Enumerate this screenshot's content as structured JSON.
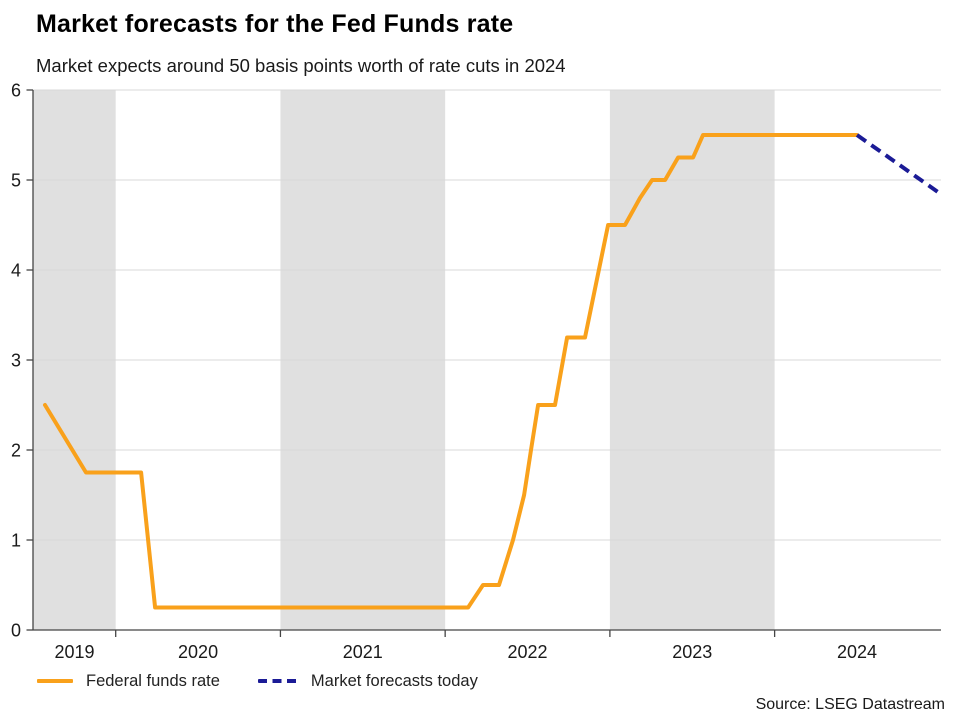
{
  "chart_data": {
    "type": "line",
    "title": "Market forecasts for the Fed Funds rate",
    "subtitle": "Market expects around 50 basis points worth of rate cuts in 2024",
    "source": "Source: LSEG Datastream",
    "xlabel": "",
    "ylabel": "",
    "grid": "horizontal",
    "x_axis": {
      "min": 2019.498,
      "max": 2025.01,
      "tick_positions": [
        2020,
        2021,
        2022,
        2023,
        2024
      ],
      "labels": [
        {
          "text": "2019",
          "x": 2019.75
        },
        {
          "text": "2020",
          "x": 2020.5
        },
        {
          "text": "2021",
          "x": 2021.5
        },
        {
          "text": "2022",
          "x": 2022.5
        },
        {
          "text": "2023",
          "x": 2023.5
        },
        {
          "text": "2024",
          "x": 2024.5
        }
      ]
    },
    "y_axis": {
      "min": 0,
      "max": 6,
      "ticks": [
        0,
        1,
        2,
        3,
        4,
        5,
        6
      ]
    },
    "shaded_bands": [
      {
        "from": 2019.498,
        "to": 2020
      },
      {
        "from": 2021,
        "to": 2022
      },
      {
        "from": 2023,
        "to": 2024
      }
    ],
    "legend": [
      {
        "label": "Federal funds rate",
        "color": "#F9A11B",
        "style": "solid"
      },
      {
        "label": "Market forecasts today",
        "color": "#1B1B96",
        "style": "dashed"
      }
    ],
    "legend_position": "bottom-left",
    "series": [
      {
        "name": "Federal funds rate",
        "color": "#F9A11B",
        "style": "solid",
        "points": [
          [
            2019.571,
            2.5
          ],
          [
            2019.82,
            1.75
          ],
          [
            2020.154,
            1.75
          ],
          [
            2020.239,
            0.25
          ],
          [
            2022.139,
            0.25
          ],
          [
            2022.23,
            0.5
          ],
          [
            2022.327,
            0.5
          ],
          [
            2022.412,
            1.0
          ],
          [
            2022.479,
            1.5
          ],
          [
            2022.521,
            2.0
          ],
          [
            2022.564,
            2.5
          ],
          [
            2022.667,
            2.5
          ],
          [
            2022.74,
            3.25
          ],
          [
            2022.849,
            3.25
          ],
          [
            2022.989,
            4.5
          ],
          [
            2023.092,
            4.5
          ],
          [
            2023.183,
            4.8
          ],
          [
            2023.256,
            5.0
          ],
          [
            2023.335,
            5.0
          ],
          [
            2023.414,
            5.25
          ],
          [
            2023.505,
            5.25
          ],
          [
            2023.565,
            5.5
          ],
          [
            2024.5,
            5.5
          ]
        ]
      },
      {
        "name": "Market forecasts today",
        "color": "#1B1B96",
        "style": "dashed",
        "points": [
          [
            2024.5,
            5.5
          ],
          [
            2025.004,
            4.85
          ]
        ]
      }
    ]
  },
  "colors": {
    "band_gray": "#E0E0E0",
    "gridline": "#D9D9D9",
    "axis": "#454545",
    "tick_label": "#1a1a1a",
    "orange": "#F9A11B",
    "navy": "#1B1B96"
  }
}
